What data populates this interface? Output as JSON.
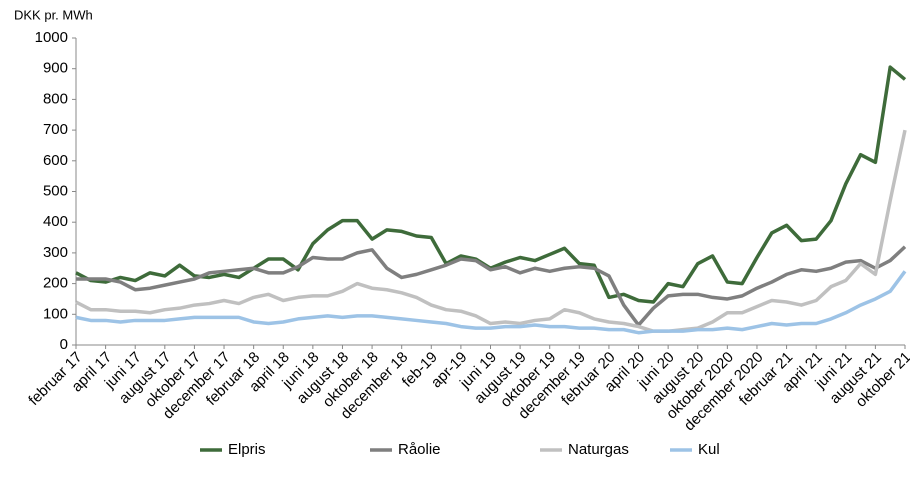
{
  "chart_data": {
    "type": "line",
    "y_label": "DKK pr. MWh",
    "categories": [
      "februar 17",
      null,
      "april 17",
      null,
      "juni 17",
      null,
      "august 17",
      null,
      "oktober 17",
      null,
      "december 17",
      null,
      "februar 18",
      null,
      "april 18",
      null,
      "juni 18",
      null,
      "august 18",
      null,
      "oktober 18",
      null,
      "december 18",
      null,
      "feb-19",
      null,
      "apr-19",
      null,
      "juni 19",
      null,
      "august 19",
      null,
      "oktober 19",
      null,
      "december 19",
      null,
      "februar 20",
      null,
      "april 20",
      null,
      "juni 20",
      null,
      "august 20",
      null,
      "oktober 2020",
      null,
      "december 2020",
      null,
      "februar 21",
      null,
      "april 21",
      null,
      "juni 21",
      null,
      "august 21",
      null,
      "oktober 21"
    ],
    "series": [
      {
        "name": "Elpris",
        "color": "#3e6b3a",
        "values": [
          235,
          210,
          205,
          220,
          210,
          235,
          225,
          260,
          225,
          220,
          230,
          220,
          250,
          280,
          280,
          245,
          330,
          375,
          405,
          405,
          345,
          375,
          370,
          355,
          350,
          265,
          290,
          280,
          250,
          270,
          285,
          275,
          295,
          315,
          265,
          260,
          155,
          165,
          145,
          140,
          200,
          190,
          265,
          290,
          205,
          200,
          285,
          365,
          390,
          340,
          345,
          405,
          525,
          620,
          595,
          905,
          865
        ]
      },
      {
        "name": "Råolie",
        "color": "#7f7f7f",
        "values": [
          215,
          215,
          215,
          205,
          180,
          185,
          195,
          205,
          215,
          235,
          240,
          245,
          250,
          235,
          235,
          255,
          285,
          280,
          280,
          300,
          310,
          250,
          220,
          230,
          245,
          260,
          280,
          275,
          245,
          255,
          235,
          250,
          240,
          250,
          255,
          250,
          225,
          130,
          65,
          120,
          160,
          165,
          165,
          155,
          150,
          160,
          185,
          205,
          230,
          245,
          240,
          250,
          270,
          275,
          250,
          275,
          320
        ]
      },
      {
        "name": "Naturgas",
        "color": "#c0c0c0",
        "values": [
          140,
          115,
          115,
          110,
          110,
          105,
          115,
          120,
          130,
          135,
          145,
          135,
          155,
          165,
          145,
          155,
          160,
          160,
          175,
          200,
          185,
          180,
          170,
          155,
          130,
          115,
          110,
          95,
          70,
          75,
          70,
          80,
          85,
          115,
          105,
          85,
          75,
          70,
          60,
          45,
          45,
          50,
          55,
          75,
          105,
          105,
          125,
          145,
          140,
          130,
          145,
          190,
          210,
          265,
          230,
          470,
          700
        ]
      },
      {
        "name": "Kul",
        "color": "#9dc3e6",
        "values": [
          90,
          80,
          80,
          75,
          80,
          80,
          80,
          85,
          90,
          90,
          90,
          90,
          75,
          70,
          75,
          85,
          90,
          95,
          90,
          95,
          95,
          90,
          85,
          80,
          75,
          70,
          60,
          55,
          55,
          60,
          60,
          65,
          60,
          60,
          55,
          55,
          50,
          50,
          40,
          45,
          45,
          45,
          50,
          50,
          55,
          50,
          60,
          70,
          65,
          70,
          70,
          85,
          105,
          130,
          150,
          175,
          240
        ]
      }
    ],
    "ylim": [
      0,
      1000
    ],
    "yticks": [
      0,
      100,
      200,
      300,
      400,
      500,
      600,
      700,
      800,
      900,
      1000
    ],
    "legend": "bottom"
  }
}
